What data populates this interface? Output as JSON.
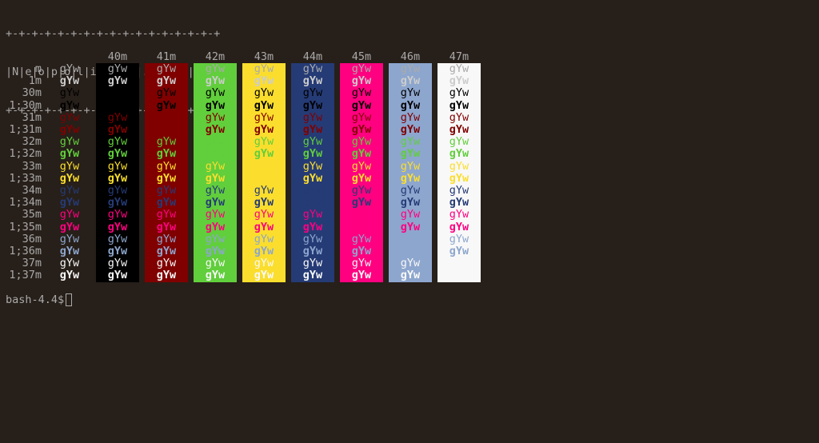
{
  "banner": {
    "line1": "+-+-+-+-+-+-+-+-+-+-+-+-+-+-+-+-+",
    "line2": "|N|e|o|p|o|l|i|t|a|n|.|c|o|n|f|",
    "line3": "+-+-+-+-+-+-+-+-+-+-+-+-+-+-+-+-+"
  },
  "sample_text": "gYw",
  "backgrounds": [
    {
      "code": "40m",
      "color": "#000000"
    },
    {
      "code": "41m",
      "color": "#800000"
    },
    {
      "code": "42m",
      "color": "#61ce3c"
    },
    {
      "code": "43m",
      "color": "#fbde2d"
    },
    {
      "code": "44m",
      "color": "#253b76"
    },
    {
      "code": "45m",
      "color": "#ff0080"
    },
    {
      "code": "46m",
      "color": "#8da6ce"
    },
    {
      "code": "47m",
      "color": "#f8f8f8"
    }
  ],
  "foregrounds": [
    {
      "label": "m",
      "color": "#aaaaaa",
      "bold": false
    },
    {
      "label": "1m",
      "color": "#cccccc",
      "bold": true
    },
    {
      "label": "30m",
      "color": "#000000",
      "bold": false
    },
    {
      "label": "1;30m",
      "color": "#000000",
      "bold": true
    },
    {
      "label": "31m",
      "color": "#800000",
      "bold": false
    },
    {
      "label": "1;31m",
      "color": "#800000",
      "bold": true
    },
    {
      "label": "32m",
      "color": "#61ce3c",
      "bold": false
    },
    {
      "label": "1;32m",
      "color": "#61ce3c",
      "bold": true
    },
    {
      "label": "33m",
      "color": "#fbde2d",
      "bold": false
    },
    {
      "label": "1;33m",
      "color": "#fbde2d",
      "bold": true
    },
    {
      "label": "34m",
      "color": "#253b76",
      "bold": false
    },
    {
      "label": "1;34m",
      "color": "#253b76",
      "bold": true
    },
    {
      "label": "35m",
      "color": "#ff0080",
      "bold": false
    },
    {
      "label": "1;35m",
      "color": "#ff0080",
      "bold": true
    },
    {
      "label": "36m",
      "color": "#8da6ce",
      "bold": false
    },
    {
      "label": "1;36m",
      "color": "#8da6ce",
      "bold": true
    },
    {
      "label": "37m",
      "color": "#f8f8f8",
      "bold": false
    },
    {
      "label": "1;37m",
      "color": "#f8f8f8",
      "bold": true
    }
  ],
  "prompt": "bash-4.4$",
  "colors": {
    "terminal_bg": "#271f19",
    "default_fg": "#aaaaaa"
  }
}
